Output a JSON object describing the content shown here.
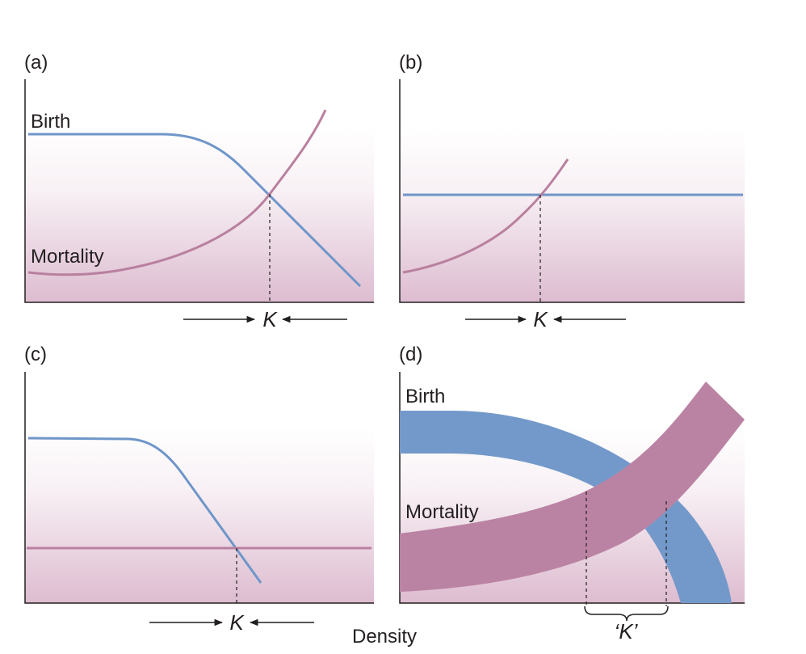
{
  "panels": {
    "a": {
      "label": "(a)",
      "birth_label": "Birth",
      "mortality_label": "Mortality",
      "k_label": "K"
    },
    "b": {
      "label": "(b)",
      "k_label": "K"
    },
    "c": {
      "label": "(c)",
      "k_label": "K"
    },
    "d": {
      "label": "(d)",
      "birth_label": "Birth",
      "mortality_label": "Mortality",
      "k_label": "‘K’"
    }
  },
  "x_axis_label": "Density",
  "colors": {
    "birth": "#6f96c9",
    "mortality": "#b9809f",
    "axis": "#231f20",
    "panel_top": "#ffffff",
    "panel_bottom": "#ddbcd0"
  }
}
